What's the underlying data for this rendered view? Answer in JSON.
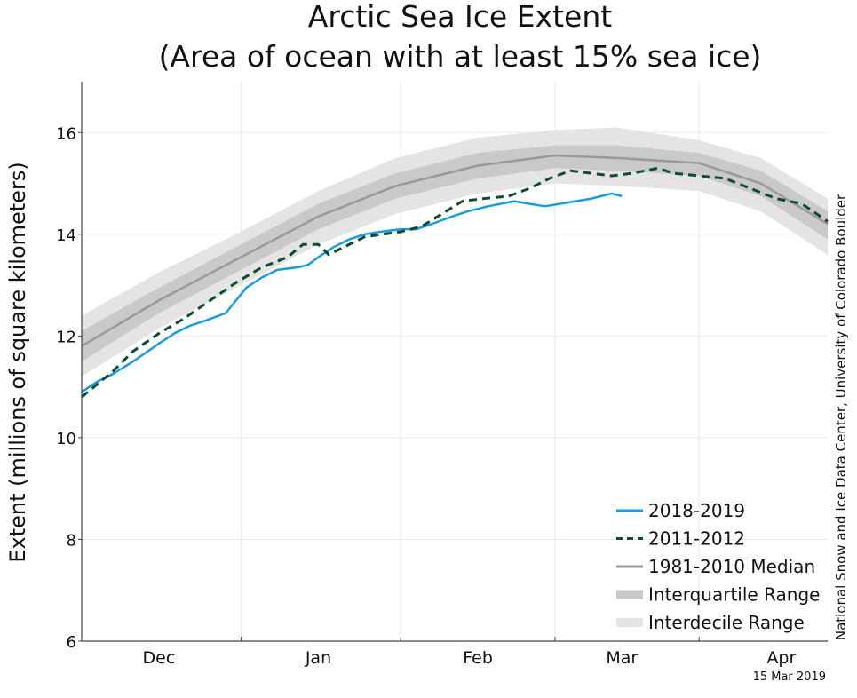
{
  "chart_data": {
    "type": "line",
    "title_line1": "Arctic Sea Ice Extent",
    "title_line2": "(Area of ocean with at least 15% sea ice)",
    "ylabel": "Extent (millions of square kilometers)",
    "xlabel": "",
    "xlim": [
      0,
      145
    ],
    "ylim": [
      6,
      17
    ],
    "y_ticks": [
      6,
      8,
      10,
      12,
      14,
      16
    ],
    "x_month_ticks": [
      {
        "label": "Dec",
        "x": 15
      },
      {
        "label": "Jan",
        "x": 46
      },
      {
        "label": "Feb",
        "x": 77
      },
      {
        "label": "Mar",
        "x": 105
      },
      {
        "label": "Apr",
        "x": 136
      }
    ],
    "x_boundaries": [
      31,
      62,
      92,
      120
    ],
    "grid": true,
    "credit": "National Snow and Ice Data Center, University of Colorado Boulder",
    "date_stamp": "15 Mar 2019",
    "legend": {
      "position": "bottom-right",
      "entries": [
        {
          "label": "2018-2019",
          "style": "line",
          "color": "#1a9be0"
        },
        {
          "label": "2011-2012",
          "style": "dashed",
          "color": "#0d4d2e"
        },
        {
          "label": "1981-2010 Median",
          "style": "line",
          "color": "#999999"
        },
        {
          "label": "Interquartile Range",
          "style": "band",
          "color": "#c9c9c9"
        },
        {
          "label": "Interdecile Range",
          "style": "band",
          "color": "#e4e4e4"
        }
      ]
    },
    "bands": {
      "x": [
        0,
        15,
        30,
        46,
        61,
        77,
        92,
        104,
        120,
        132,
        145
      ],
      "median": [
        11.8,
        12.7,
        13.5,
        14.35,
        14.95,
        15.35,
        15.55,
        15.5,
        15.4,
        15.0,
        14.2
      ],
      "interquartile_low": [
        11.5,
        12.45,
        13.25,
        14.1,
        14.7,
        15.1,
        15.3,
        15.25,
        15.15,
        14.75,
        13.9
      ],
      "interquartile_high": [
        12.1,
        12.95,
        13.75,
        14.6,
        15.2,
        15.6,
        15.75,
        15.75,
        15.6,
        15.25,
        14.45
      ],
      "interdecile_low": [
        11.2,
        12.15,
        12.95,
        13.8,
        14.4,
        14.8,
        15.0,
        14.95,
        14.85,
        14.45,
        13.6
      ],
      "interdecile_high": [
        12.4,
        13.25,
        14.0,
        14.85,
        15.5,
        15.9,
        16.05,
        16.1,
        15.85,
        15.5,
        14.7
      ]
    },
    "series": [
      {
        "name": "2018-2019",
        "color": "#1a9be0",
        "dashed": false,
        "x": [
          0,
          3,
          6,
          10,
          15,
          18,
          21,
          24,
          28,
          32,
          35,
          38,
          42,
          44,
          46,
          49,
          52,
          55,
          58,
          62,
          65,
          68,
          72,
          75,
          79,
          84,
          87,
          90,
          93,
          96,
          99,
          101,
          103,
          105
        ],
        "y": [
          10.9,
          11.1,
          11.25,
          11.5,
          11.85,
          12.05,
          12.2,
          12.3,
          12.45,
          12.95,
          13.15,
          13.3,
          13.35,
          13.4,
          13.55,
          13.75,
          13.9,
          14.0,
          14.05,
          14.1,
          14.1,
          14.2,
          14.35,
          14.45,
          14.55,
          14.65,
          14.6,
          14.55,
          14.6,
          14.65,
          14.7,
          14.75,
          14.8,
          14.75
        ]
      },
      {
        "name": "2011-2012",
        "color": "#0d4d2e",
        "dashed": true,
        "x": [
          0,
          3,
          6,
          10,
          15,
          20,
          25,
          30,
          35,
          40,
          43,
          46,
          48,
          51,
          55,
          62,
          66,
          70,
          74,
          78,
          83,
          87,
          91,
          95,
          99,
          103,
          107,
          112,
          115,
          120,
          125,
          130,
          135,
          140,
          145
        ],
        "y": [
          10.8,
          11.05,
          11.3,
          11.7,
          12.05,
          12.35,
          12.7,
          13.05,
          13.35,
          13.55,
          13.8,
          13.8,
          13.6,
          13.75,
          13.95,
          14.05,
          14.15,
          14.4,
          14.65,
          14.7,
          14.75,
          14.9,
          15.1,
          15.25,
          15.2,
          15.15,
          15.2,
          15.3,
          15.2,
          15.15,
          15.1,
          14.9,
          14.7,
          14.6,
          14.25
        ]
      }
    ]
  }
}
